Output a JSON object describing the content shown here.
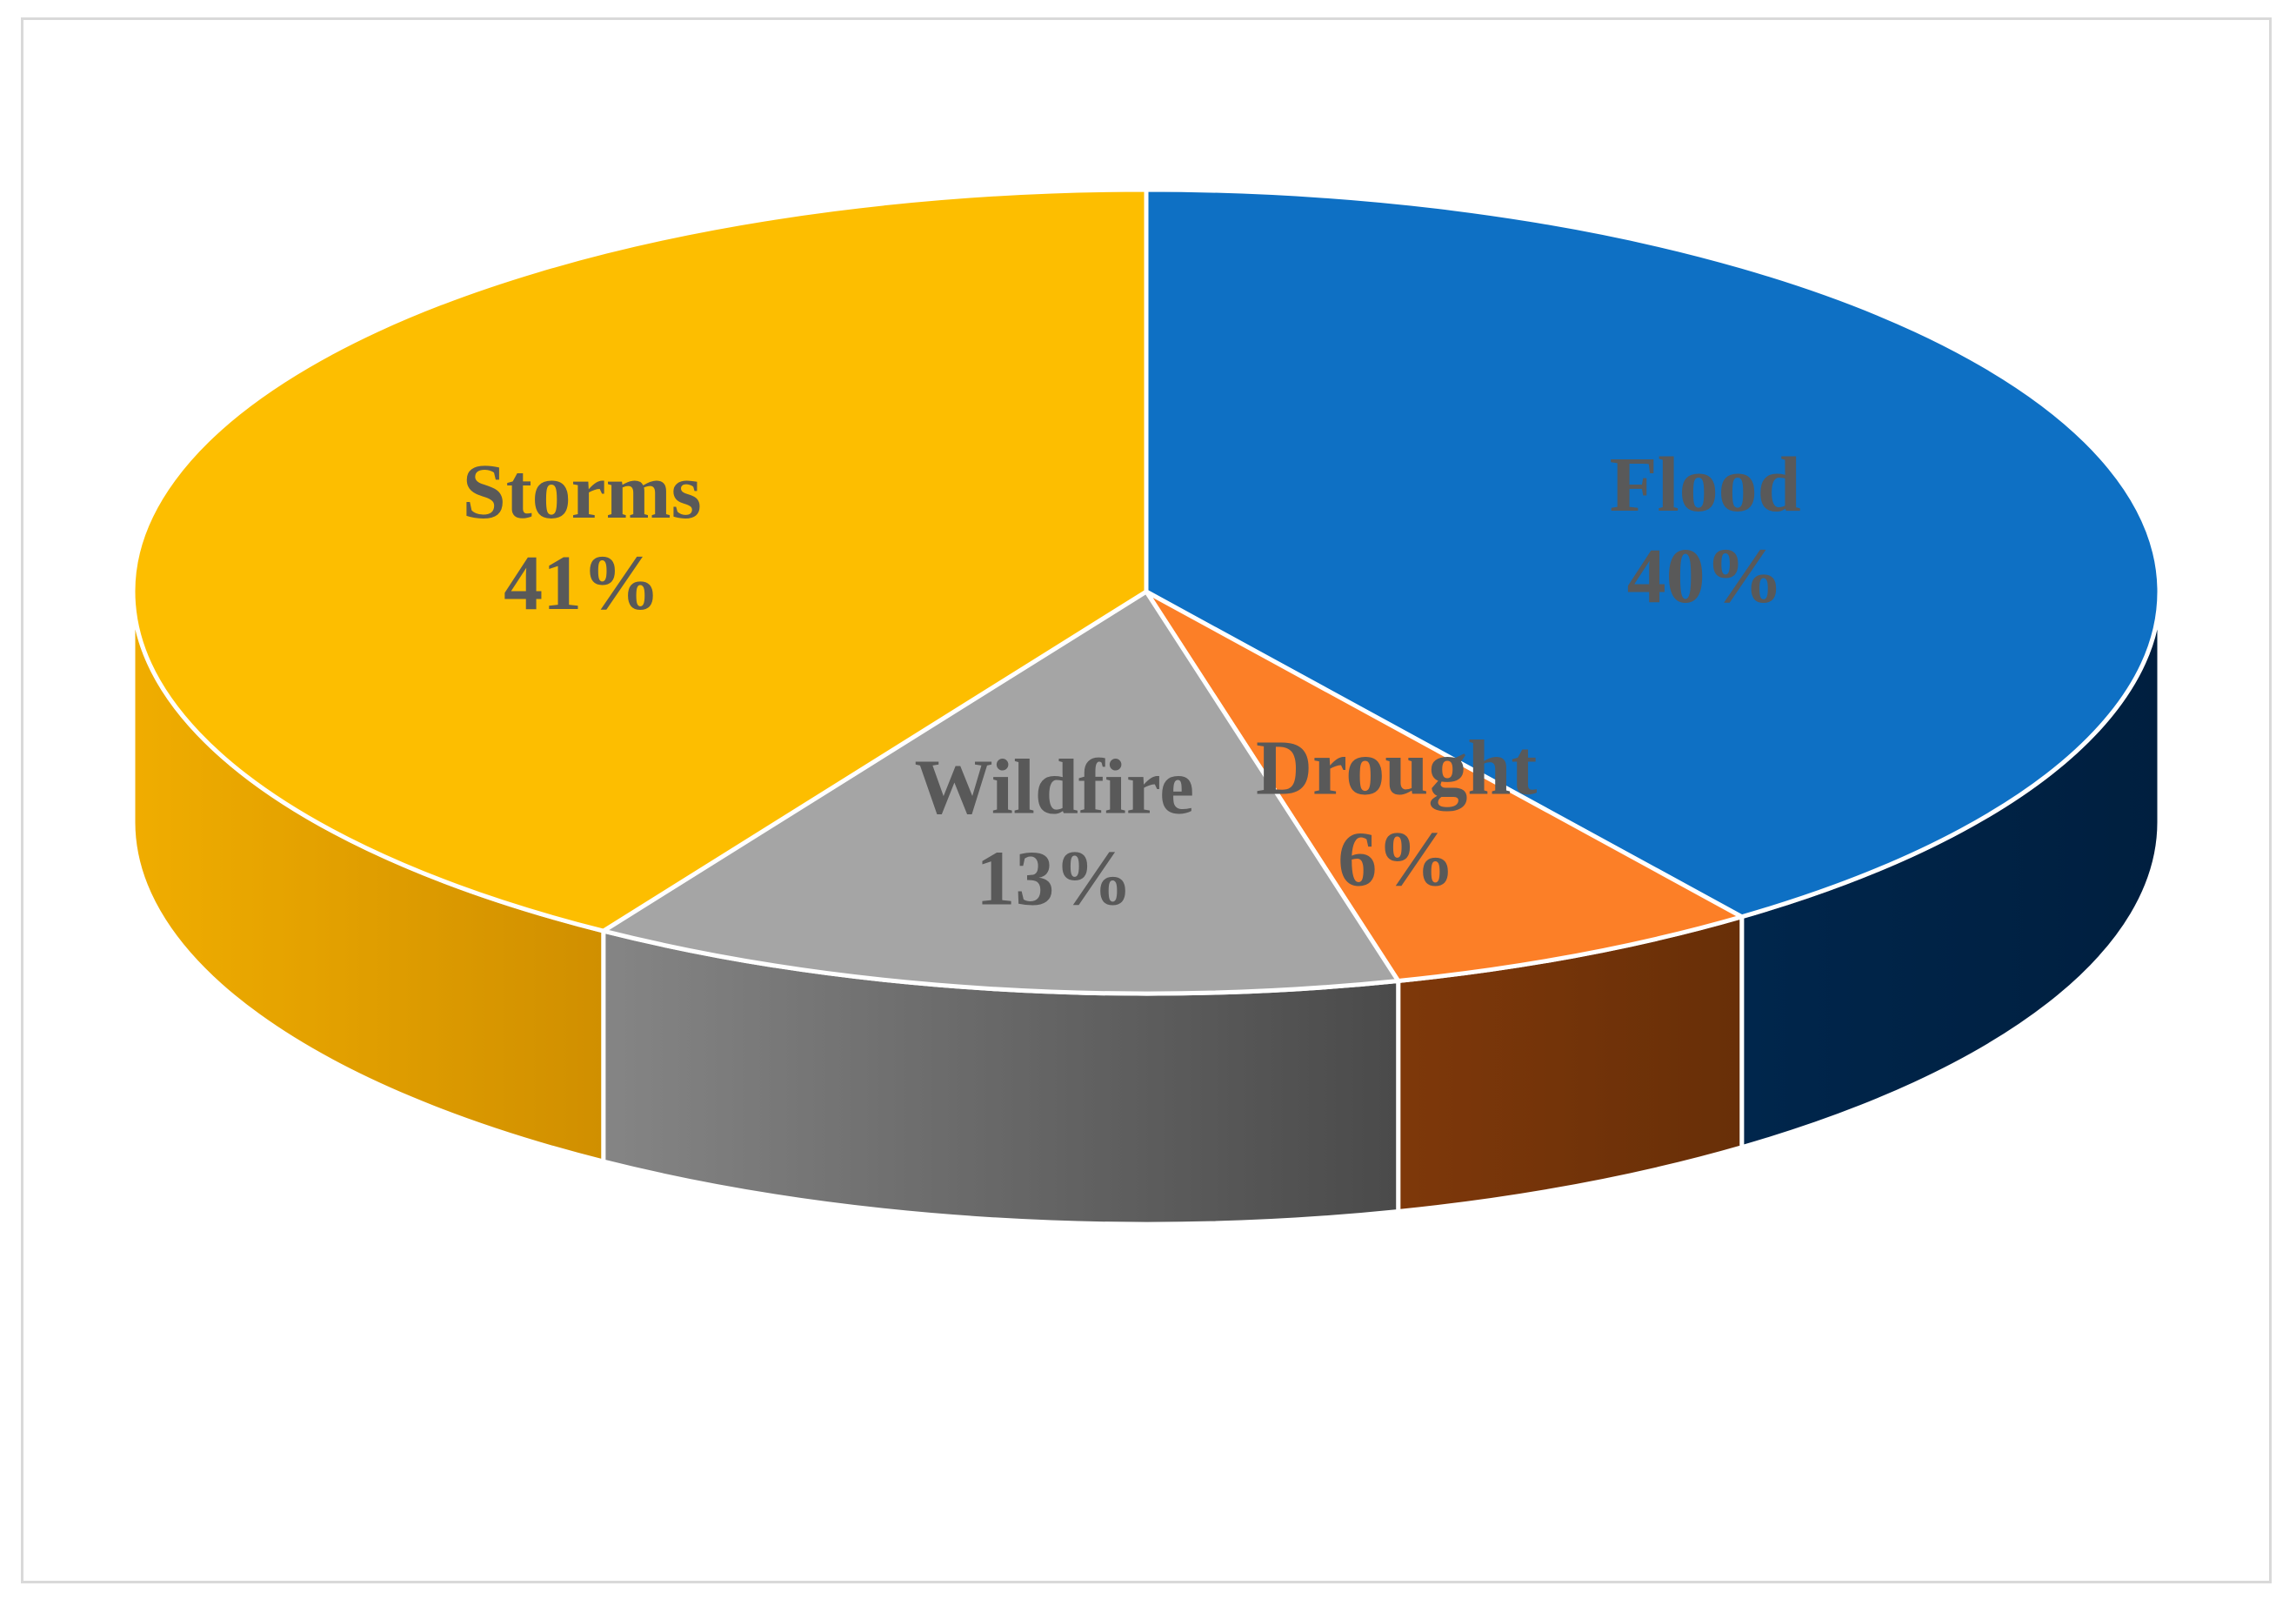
{
  "chart_data": {
    "type": "pie",
    "style": "3d",
    "categories": [
      "Flood",
      "Drought",
      "Wildfire",
      "Storms"
    ],
    "values": [
      40,
      6,
      13,
      41
    ],
    "value_labels": [
      "40%",
      "6%",
      "13%",
      "41%"
    ],
    "colors": {
      "Flood": {
        "top": "#0e70c4",
        "side": "#002448"
      },
      "Drought": {
        "top": "#fc7f27",
        "side": "#76350a"
      },
      "Wildfire": {
        "top": "#a5a5a5",
        "side": "#5a5a5a"
      },
      "Storms": {
        "top": "#fdbe00",
        "side": "#d99a00"
      }
    },
    "label_color": "#595959",
    "legend": "none"
  }
}
